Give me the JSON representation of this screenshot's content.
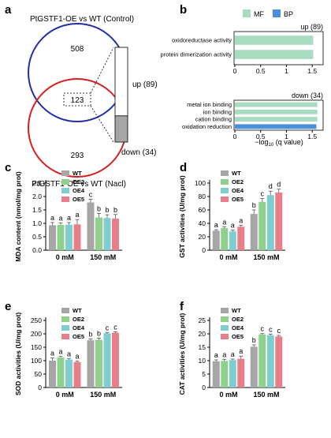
{
  "panels": {
    "a": "a",
    "b": "b",
    "c": "c",
    "d": "d",
    "e": "e",
    "f": "f"
  },
  "colors": {
    "WT": "#a6a6a6",
    "OE2": "#8fd18a",
    "OE4": "#7ecdd0",
    "OE5": "#e87e8a",
    "MF": "#a8dcc0",
    "BP": "#4a90d9"
  },
  "venn": {
    "top_label": "PtGSTF1-OE vs WT (Control)",
    "bottom_label": "PtGSTF1-OE vs WT (Nacl)",
    "only_top": "508",
    "shared": "123",
    "only_bottom": "293",
    "up_label": "up (89)",
    "down_label": "down (34)",
    "up_count": 89,
    "down_count": 34
  },
  "go": {
    "legend": [
      "MF",
      "BP"
    ],
    "xlabel_prefix": "−log",
    "xlabel_sub": "10",
    "xlabel_suffix": " (q value)",
    "ticks": [
      "0",
      "0.5",
      "1",
      "1.5"
    ],
    "up": {
      "header": "up (89)",
      "terms": [
        {
          "name": "oxidoreductase activity",
          "value": 1.52,
          "cat": "MF"
        },
        {
          "name": "protein dimerization activity",
          "value": 1.52,
          "cat": "MF"
        }
      ]
    },
    "down": {
      "header": "down (34)",
      "terms": [
        {
          "name": "metal ion binding",
          "value": 1.6,
          "cat": "MF"
        },
        {
          "name": "ion binding",
          "value": 1.6,
          "cat": "MF"
        },
        {
          "name": "cation binding",
          "value": 1.6,
          "cat": "MF"
        },
        {
          "name": "oxidation reduction",
          "value": 1.58,
          "cat": "BP"
        }
      ]
    }
  },
  "chart_data": [
    {
      "panel": "c",
      "type": "bar",
      "ylabel": "MDA content (nmol/mg prot)",
      "ylim": [
        0,
        2.5
      ],
      "yticks": [
        "0.0",
        "0.5",
        "1.0",
        "1.5",
        "2.0",
        "2.5"
      ],
      "categories": [
        "0 mM",
        "150 mM"
      ],
      "series": [
        {
          "name": "WT",
          "values": [
            0.93,
            1.78
          ],
          "err": [
            0.1,
            0.12
          ],
          "letters": [
            "a",
            "c"
          ]
        },
        {
          "name": "OE2",
          "values": [
            0.94,
            1.22
          ],
          "err": [
            0.08,
            0.15
          ],
          "letters": [
            "a",
            "b"
          ]
        },
        {
          "name": "OE4",
          "values": [
            0.95,
            1.2
          ],
          "err": [
            0.08,
            0.12
          ],
          "letters": [
            "a",
            "b"
          ]
        },
        {
          "name": "OE5",
          "values": [
            0.96,
            1.18
          ],
          "err": [
            0.18,
            0.15
          ],
          "letters": [
            "a",
            "b"
          ]
        }
      ]
    },
    {
      "panel": "d",
      "type": "bar",
      "ylabel": "GST activities (U/mg prot)",
      "ylim": [
        0,
        100
      ],
      "yticks": [
        "0",
        "20",
        "40",
        "60",
        "80",
        "100"
      ],
      "categories": [
        "0 mM",
        "150 mM"
      ],
      "series": [
        {
          "name": "WT",
          "values": [
            29,
            54
          ],
          "err": [
            1.5,
            6
          ],
          "letters": [
            "a",
            "b"
          ]
        },
        {
          "name": "OE2",
          "values": [
            33,
            72
          ],
          "err": [
            2,
            5
          ],
          "letters": [
            "a",
            "c"
          ]
        },
        {
          "name": "OE4",
          "values": [
            28,
            82
          ],
          "err": [
            2,
            6
          ],
          "letters": [
            "a",
            "d"
          ]
        },
        {
          "name": "OE5",
          "values": [
            35,
            86
          ],
          "err": [
            2,
            5
          ],
          "letters": [
            "a",
            "d"
          ]
        }
      ]
    },
    {
      "panel": "e",
      "type": "bar",
      "ylabel": "SOD activities (U/mg prot)",
      "ylim": [
        0,
        250
      ],
      "yticks": [
        "0",
        "50",
        "100",
        "150",
        "200",
        "250"
      ],
      "categories": [
        "0 mM",
        "150 mM"
      ],
      "series": [
        {
          "name": "WT",
          "values": [
            100,
            176
          ],
          "err": [
            10,
            5
          ],
          "letters": [
            "a",
            "b"
          ]
        },
        {
          "name": "OE2",
          "values": [
            112,
            178
          ],
          "err": [
            4,
            6
          ],
          "letters": [
            "a",
            "b"
          ]
        },
        {
          "name": "OE4",
          "values": [
            104,
            202
          ],
          "err": [
            4,
            3
          ],
          "letters": [
            "a",
            "c"
          ]
        },
        {
          "name": "OE5",
          "values": [
            95,
            204
          ],
          "err": [
            4,
            3
          ],
          "letters": [
            "a",
            "c"
          ]
        }
      ]
    },
    {
      "panel": "f",
      "type": "bar",
      "ylabel": "CAT activities (U/mg prot)",
      "ylim": [
        0,
        25
      ],
      "yticks": [
        "0",
        "5",
        "10",
        "15",
        "20",
        "25"
      ],
      "categories": [
        "0 mM",
        "150 mM"
      ],
      "series": [
        {
          "name": "WT",
          "values": [
            9.8,
            15.2
          ],
          "err": [
            0.5,
            0.7
          ],
          "letters": [
            "a",
            "b"
          ]
        },
        {
          "name": "OE2",
          "values": [
            9.9,
            19.8
          ],
          "err": [
            0.6,
            0.3
          ],
          "letters": [
            "a",
            "c"
          ]
        },
        {
          "name": "OE4",
          "values": [
            10.2,
            19.5
          ],
          "err": [
            0.4,
            0.4
          ],
          "letters": [
            "a",
            "c"
          ]
        },
        {
          "name": "OE5",
          "values": [
            10.7,
            19.0
          ],
          "err": [
            1.0,
            0.4
          ],
          "letters": [
            "a",
            "c"
          ]
        }
      ]
    }
  ]
}
